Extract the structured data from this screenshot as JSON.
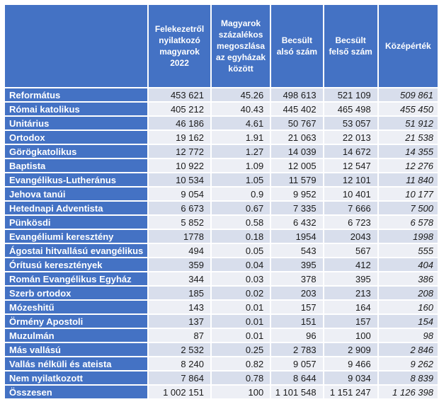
{
  "colors": {
    "header_blue": "#4472c4",
    "band_dark": "#d8deec",
    "band_light": "#edeff5",
    "grid_white": "#ffffff",
    "data_text": "#1a1a1a",
    "header_text": "#ffffff"
  },
  "table": {
    "columns": [
      {
        "key": "name",
        "label": ""
      },
      {
        "key": "declared",
        "label": "Felekezetről nyilatkozó magyarok 2022"
      },
      {
        "key": "percent",
        "label": "Magyarok százalékos megoszlása az egyházak között"
      },
      {
        "key": "lower",
        "label": "Becsült alsó szám"
      },
      {
        "key": "upper",
        "label": "Becsült felső szám"
      },
      {
        "key": "mid",
        "label": "Középérték"
      }
    ],
    "rows": [
      {
        "name": "Református",
        "declared": "453 621",
        "percent": "45.26",
        "lower": "498 613",
        "upper": "521 109",
        "mid": "509 861"
      },
      {
        "name": "Római katolikus",
        "declared": "405 212",
        "percent": "40.43",
        "lower": "445 402",
        "upper": "465 498",
        "mid": "455 450"
      },
      {
        "name": "Unitárius",
        "declared": "46 186",
        "percent": "4.61",
        "lower": "50 767",
        "upper": "53 057",
        "mid": "51 912"
      },
      {
        "name": "Ortodox",
        "declared": "19 162",
        "percent": "1.91",
        "lower": "21 063",
        "upper": "22 013",
        "mid": "21 538"
      },
      {
        "name": "Görögkatolikus",
        "declared": "12 772",
        "percent": "1.27",
        "lower": "14 039",
        "upper": "14 672",
        "mid": "14 355"
      },
      {
        "name": "Baptista",
        "declared": "10 922",
        "percent": "1.09",
        "lower": "12 005",
        "upper": "12 547",
        "mid": "12 276"
      },
      {
        "name": "Evangélikus-Lutheránus",
        "declared": "10 534",
        "percent": "1.05",
        "lower": "11 579",
        "upper": "12 101",
        "mid": "11 840"
      },
      {
        "name": "Jehova tanúi",
        "declared": "9 054",
        "percent": "0.9",
        "lower": "9 952",
        "upper": "10 401",
        "mid": "10 177"
      },
      {
        "name": "Hetednapi Adventista",
        "declared": "6 673",
        "percent": "0.67",
        "lower": "7 335",
        "upper": "7 666",
        "mid": "7 500"
      },
      {
        "name": "Pünkösdi",
        "declared": "5 852",
        "percent": "0.58",
        "lower": "6 432",
        "upper": "6 723",
        "mid": "6 578"
      },
      {
        "name": "Evangéliumi keresztény",
        "declared": "1778",
        "percent": "0.18",
        "lower": "1954",
        "upper": "2043",
        "mid": "1998"
      },
      {
        "name": "Ágostai hitvallású evangélikus",
        "declared": "494",
        "percent": "0.05",
        "lower": "543",
        "upper": "567",
        "mid": "555"
      },
      {
        "name": "Órítusú keresztények",
        "declared": "359",
        "percent": "0.04",
        "lower": "395",
        "upper": "412",
        "mid": "404"
      },
      {
        "name": "Román Evangélikus Egyház",
        "declared": "344",
        "percent": "0.03",
        "lower": "378",
        "upper": "395",
        "mid": "386"
      },
      {
        "name": "Szerb ortodox",
        "declared": "185",
        "percent": "0.02",
        "lower": "203",
        "upper": "213",
        "mid": "208"
      },
      {
        "name": "Mózeshitű",
        "declared": "143",
        "percent": "0.01",
        "lower": "157",
        "upper": "164",
        "mid": "160"
      },
      {
        "name": "Örmény Apostoli",
        "declared": "137",
        "percent": "0.01",
        "lower": "151",
        "upper": "157",
        "mid": "154"
      },
      {
        "name": "Muzulmán",
        "declared": "87",
        "percent": "0.01",
        "lower": "96",
        "upper": "100",
        "mid": "98"
      },
      {
        "name": "Más vallású",
        "declared": "2 532",
        "percent": "0.25",
        "lower": "2 783",
        "upper": "2 909",
        "mid": "2 846"
      },
      {
        "name": "Vallás nélküli és ateista",
        "declared": "8 240",
        "percent": "0.82",
        "lower": "9 057",
        "upper": "9 466",
        "mid": "9 262"
      },
      {
        "name": "Nem nyilatkozott",
        "declared": "7 864",
        "percent": "0.78",
        "lower": "8 644",
        "upper": "9 034",
        "mid": "8 839"
      },
      {
        "name": "Összesen",
        "declared": "1 002 151",
        "percent": "100",
        "lower": "1 101 548",
        "upper": "1 151 247",
        "mid": "1 126 398"
      }
    ]
  }
}
